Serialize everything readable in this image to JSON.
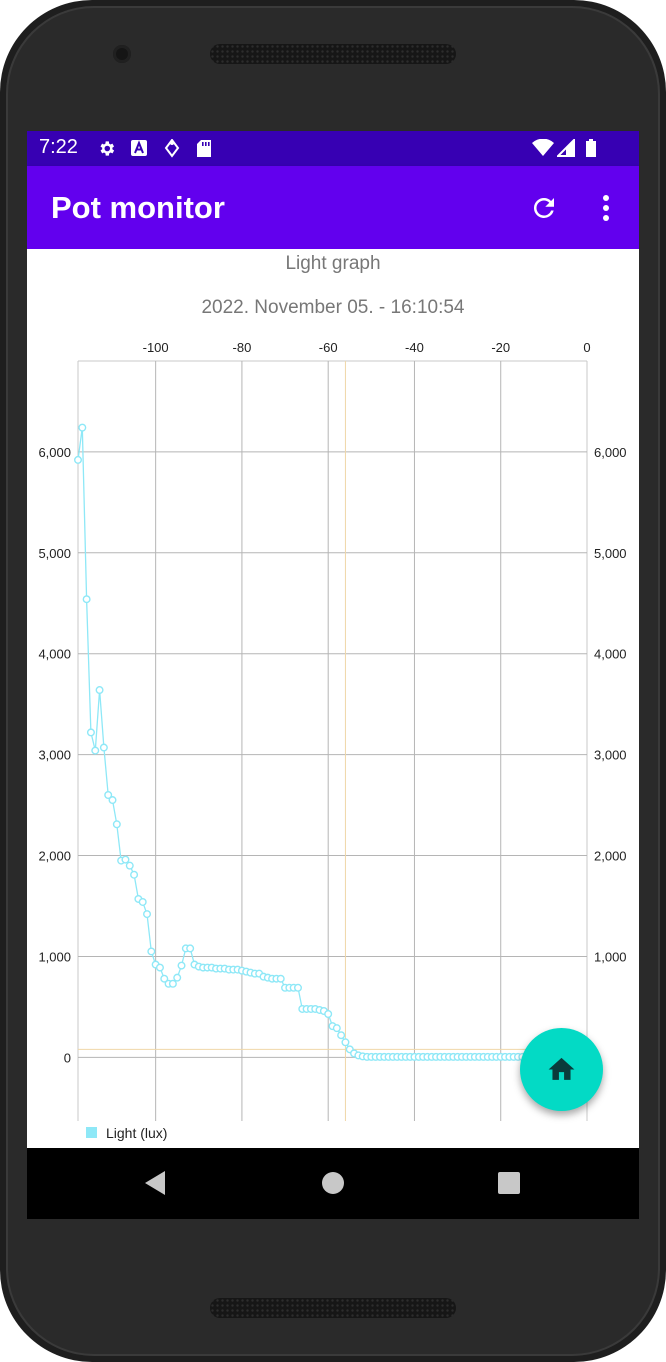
{
  "status_bar": {
    "time": "7:22",
    "icons": [
      "gear-icon",
      "a-icon",
      "location-icon",
      "sd-card-icon",
      "wifi-icon",
      "signal-icon",
      "battery-icon"
    ]
  },
  "app_bar": {
    "title": "Pot monitor",
    "actions": [
      "refresh-icon",
      "more-vert-icon"
    ]
  },
  "colors": {
    "status_bar": "#3700b3",
    "app_bar": "#6200ee",
    "fab": "#03dac5",
    "series": "#8ee8f7",
    "limit_line": "#f0d7a8"
  },
  "chart_data": {
    "type": "line",
    "title": "Light graph",
    "subtitle": "2022. November 05. - 16:10:54",
    "xlim": [
      -118,
      0
    ],
    "ylim": [
      -630,
      6900
    ],
    "x_ticks": [
      -100,
      -80,
      -60,
      -40,
      -20,
      0
    ],
    "x_tick_labels": [
      "-100",
      "-80",
      "-60",
      "-40",
      "-20",
      "0"
    ],
    "y_ticks": [
      0,
      1000,
      2000,
      3000,
      4000,
      5000,
      6000
    ],
    "y_tick_labels_left": [
      "0",
      "1,000",
      "2,000",
      "3,000",
      "4,000",
      "5,000",
      "6,000"
    ],
    "y_tick_labels_right": [
      "0",
      "1,000",
      "2,000",
      "3,000",
      "4,000",
      "5,000",
      "6,000"
    ],
    "grid": true,
    "limit_lines": {
      "vertical_x": -56,
      "horizontal_y": 80
    },
    "legend": {
      "position": "bottom-left",
      "label": "Light (lux)"
    },
    "series": [
      {
        "name": "Light (lux)",
        "x": [
          -118,
          -117,
          -116,
          -115,
          -114,
          -113,
          -112,
          -111,
          -110,
          -109,
          -108,
          -107,
          -106,
          -105,
          -104,
          -103,
          -102,
          -101,
          -100,
          -99,
          -98,
          -97,
          -96,
          -95,
          -94,
          -93,
          -92,
          -91,
          -90,
          -89,
          -88,
          -87,
          -86,
          -85,
          -84,
          -83,
          -82,
          -81,
          -80,
          -79,
          -78,
          -77,
          -76,
          -75,
          -74,
          -73,
          -72,
          -71,
          -70,
          -69,
          -68,
          -67,
          -66,
          -65,
          -64,
          -63,
          -62,
          -61,
          -60,
          -59,
          -58,
          -57,
          -56,
          -55,
          -54,
          -53,
          -52,
          -51,
          -50,
          -49,
          -48,
          -47,
          -46,
          -45,
          -44,
          -43,
          -42,
          -41,
          -40,
          -39,
          -38,
          -37,
          -36,
          -35,
          -34,
          -33,
          -32,
          -31,
          -30,
          -29,
          -28,
          -27,
          -26,
          -25,
          -24,
          -23,
          -22,
          -21,
          -20,
          -19,
          -18,
          -17,
          -16,
          -15,
          -14,
          -13,
          -12,
          -11,
          -10,
          -9,
          -8,
          -7,
          -6,
          -5,
          -4,
          -3,
          -2,
          -1,
          0
        ],
        "y": [
          5920,
          6240,
          4540,
          3220,
          3040,
          3640,
          3070,
          2600,
          2550,
          2310,
          1950,
          1960,
          1900,
          1810,
          1570,
          1540,
          1420,
          1050,
          920,
          890,
          780,
          730,
          730,
          790,
          910,
          1080,
          1080,
          920,
          900,
          890,
          890,
          890,
          880,
          880,
          880,
          870,
          870,
          870,
          860,
          850,
          840,
          830,
          830,
          800,
          790,
          780,
          780,
          780,
          690,
          690,
          690,
          690,
          480,
          480,
          480,
          480,
          470,
          460,
          430,
          310,
          290,
          220,
          150,
          80,
          40,
          20,
          10,
          5,
          5,
          5,
          5,
          5,
          5,
          5,
          5,
          5,
          5,
          5,
          5,
          5,
          5,
          5,
          5,
          5,
          5,
          5,
          5,
          5,
          5,
          5,
          5,
          5,
          5,
          5,
          5,
          5,
          5,
          5,
          5,
          5,
          5,
          5,
          5,
          5,
          5,
          5,
          5,
          5,
          5,
          5,
          5,
          5,
          5,
          5,
          5,
          5,
          5,
          5,
          5
        ]
      }
    ]
  }
}
